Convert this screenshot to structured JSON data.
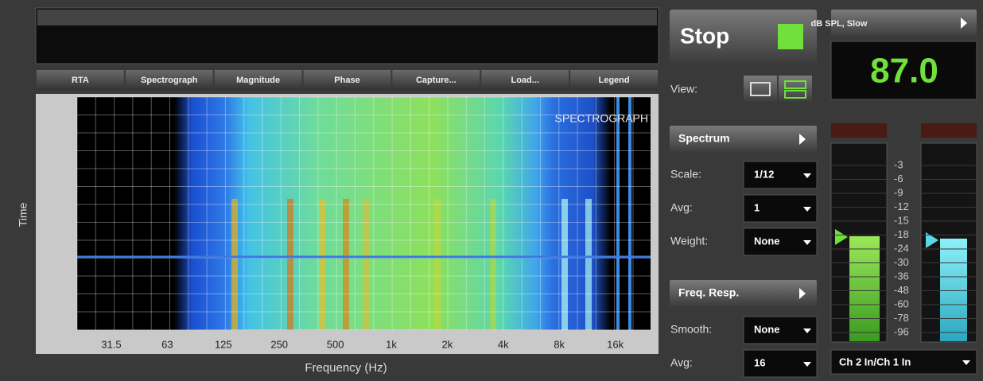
{
  "tabs": [
    "RTA",
    "Spectrograph",
    "Magnitude",
    "Phase",
    "Capture...",
    "Load...",
    "Legend"
  ],
  "plot": {
    "label": "SPECTROGRAPH",
    "y_axis": "Time",
    "x_axis": "Frequency (Hz)",
    "x_ticks": [
      "31.5",
      "63",
      "125",
      "250",
      "500",
      "1k",
      "2k",
      "4k",
      "8k",
      "16k"
    ]
  },
  "controls": {
    "stop": "Stop",
    "view": "View:",
    "spectrum": "Spectrum",
    "scale": {
      "label": "Scale:",
      "value": "1/12"
    },
    "avg": {
      "label": "Avg:",
      "value": "1"
    },
    "weight": {
      "label": "Weight:",
      "value": "None"
    },
    "freq_resp": "Freq. Resp.",
    "smooth": {
      "label": "Smooth:",
      "value": "None"
    },
    "avg2": {
      "label": "Avg:",
      "value": "16"
    }
  },
  "meter": {
    "mode": "dB SPL, Slow",
    "reading": "87.0",
    "scale": [
      "-3",
      "-6",
      "-9",
      "-12",
      "-15",
      "-18",
      "-24",
      "-30",
      "-36",
      "-48",
      "-60",
      "-78",
      "-96"
    ],
    "channels": "Ch 2 In/Ch 1 In"
  }
}
